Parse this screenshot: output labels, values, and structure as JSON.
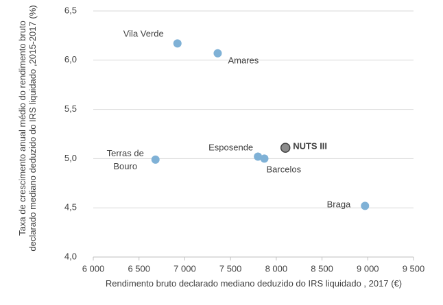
{
  "chart_data": {
    "type": "scatter",
    "xlabel": "Rendimento bruto declarado mediano deduzido do IRS liquidado , 2017 (€)",
    "ylabel": "Taxa de crescimento anual médio do rendimento bruto declarado mediano deduzido do IRS liquidado ,2015-2017 (%)",
    "labels": [
      "Vila Verde",
      "Amares",
      "Terras de Bouro",
      "Esposende",
      "Barcelos",
      "NUTS III",
      "Braga"
    ],
    "x": [
      6920,
      7360,
      6680,
      7800,
      7870,
      8100,
      8970
    ],
    "values": [
      6.17,
      6.07,
      4.99,
      5.02,
      5.0,
      5.11,
      4.52
    ],
    "colors": [
      "#7fb1d6",
      "#7fb1d6",
      "#7fb1d6",
      "#7fb1d6",
      "#7fb1d6",
      "#8c8c8c",
      "#7fb1d6"
    ],
    "emphasis": [
      false,
      false,
      false,
      false,
      false,
      true,
      false
    ],
    "xlim": [
      6000,
      9500
    ],
    "xticks": [
      {
        "value": 6000,
        "label": "6 000"
      },
      {
        "value": 6500,
        "label": "6 500"
      },
      {
        "value": 7000,
        "label": "7 000"
      },
      {
        "value": 7500,
        "label": "7 500"
      },
      {
        "value": 8000,
        "label": "8 000"
      },
      {
        "value": 8500,
        "label": "8 500"
      },
      {
        "value": 9000,
        "label": "9 000"
      },
      {
        "value": 9500,
        "label": "9 500"
      }
    ],
    "ylim": [
      4.0,
      6.5
    ],
    "yticks": [
      {
        "value": 4.0,
        "label": "4,0"
      },
      {
        "value": 4.5,
        "label": "4,5"
      },
      {
        "value": 5.0,
        "label": "5,0"
      },
      {
        "value": 5.5,
        "label": "5,5"
      },
      {
        "value": 6.0,
        "label": "6,0"
      },
      {
        "value": 6.5,
        "label": "6,5"
      }
    ],
    "grid": true
  }
}
